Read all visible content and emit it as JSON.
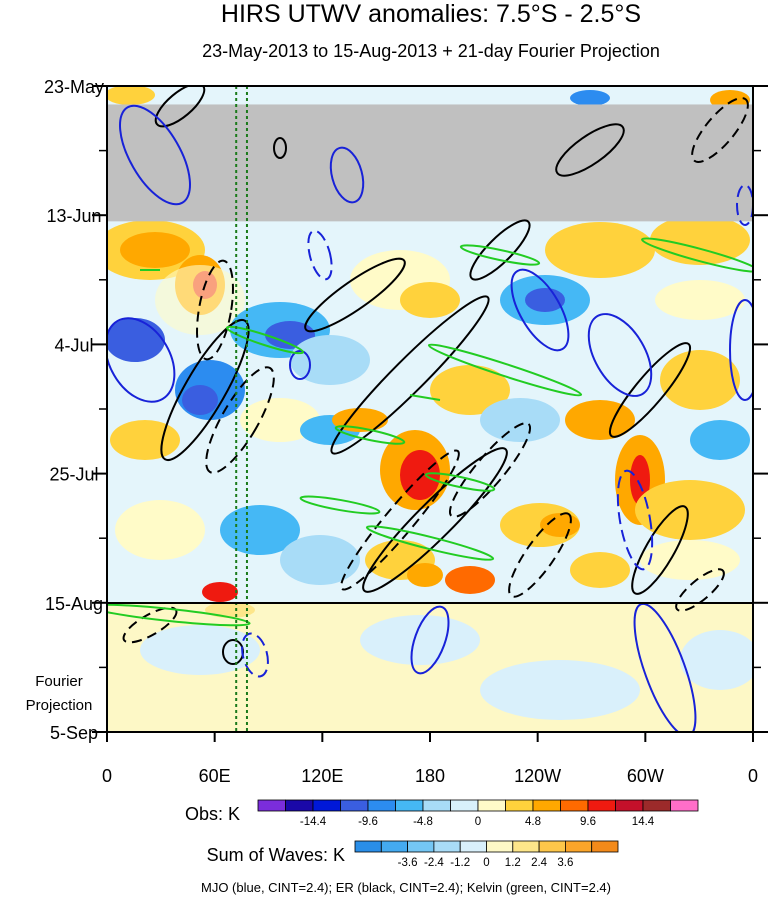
{
  "chart_data": {
    "type": "heatmap",
    "title": "HIRS UTWV anomalies: 7.5°S - 2.5°S",
    "subtitle": "23-May-2013 to 15-Aug-2013 + 21-day Fourier Projection",
    "x_ticks": [
      "0",
      "60E",
      "120E",
      "180",
      "120W",
      "60W",
      "0"
    ],
    "x_tick_lons": [
      0,
      60,
      120,
      180,
      240,
      300,
      360
    ],
    "y_ticks": [
      "23-May",
      "13-Jun",
      "4-Jul",
      "25-Jul",
      "15-Aug",
      "5-Sep"
    ],
    "y_tick_days": [
      0,
      21,
      42,
      63,
      84,
      105
    ],
    "x_range": [
      0,
      360
    ],
    "y_range_days": [
      0,
      105
    ],
    "observation_end": "15-Aug",
    "projection_label": [
      "Fourier",
      "Projection"
    ],
    "vertical_reference_lons": [
      72,
      78
    ],
    "missing_data_band": {
      "start_day": 3,
      "end_day": 22
    },
    "obs_colorbar": {
      "label": "Obs: K",
      "tick_labels": [
        "-14.4",
        "-9.6",
        "-4.8",
        "0",
        "4.8",
        "9.6",
        "14.4"
      ],
      "tick_values": [
        -14.4,
        -9.6,
        -4.8,
        0,
        4.8,
        9.6,
        14.4
      ],
      "colors": [
        "#7b2ddb",
        "#1a08a8",
        "#0018d8",
        "#3a5ee0",
        "#2c8cf0",
        "#45b8f5",
        "#a8dcf7",
        "#d8f1fb",
        "#fffbc8",
        "#ffd23c",
        "#ffa800",
        "#ff6a00",
        "#ef1a10",
        "#c4102a",
        "#9c2a2a",
        "#ff6ec8"
      ]
    },
    "waves_colorbar": {
      "label": "Sum of Waves: K",
      "tick_labels": [
        "-3.6",
        "-2.4",
        "-1.2",
        "0",
        "1.2",
        "2.4",
        "3.6"
      ],
      "tick_values": [
        -3.6,
        -2.4,
        -1.2,
        0,
        1.2,
        2.4,
        3.6
      ],
      "colors": [
        "#2a8ee8",
        "#44aaf0",
        "#74c6f4",
        "#a9dcf7",
        "#d9f0fb",
        "#fdf8c6",
        "#fde68a",
        "#fdc64a",
        "#fba52a",
        "#f38a1a"
      ]
    },
    "contours": [
      {
        "name": "MJO",
        "color": "#1822d8",
        "cint": 2.4
      },
      {
        "name": "ER",
        "color": "#000000",
        "cint": 2.4
      },
      {
        "name": "Kelvin",
        "color": "#22cc22",
        "cint": 2.4
      }
    ],
    "footnote": "MJO (blue, CINT=2.4); ER (black, CINT=2.4); Kelvin (green, CINT=2.4)"
  }
}
